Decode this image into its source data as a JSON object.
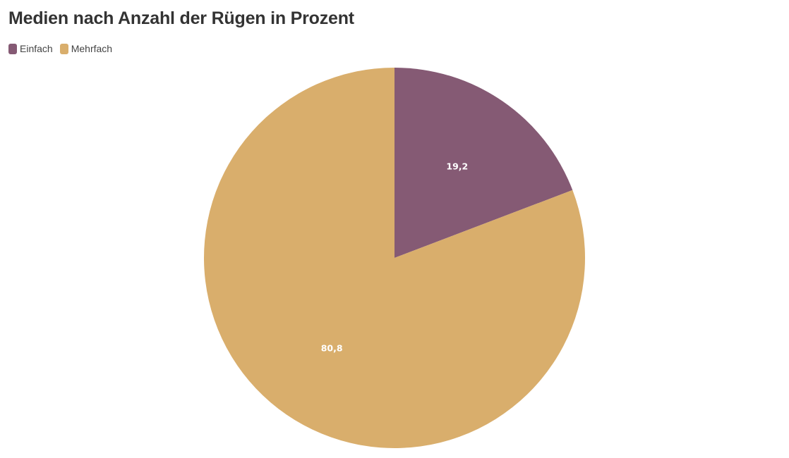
{
  "chart_data": {
    "type": "pie",
    "title": "Medien nach Anzahl der Rügen in Prozent",
    "categories": [
      "Einfach",
      "Mehrfach"
    ],
    "values": [
      19.2,
      80.8
    ],
    "data_labels": [
      "19,2",
      "80,8"
    ],
    "colors": [
      "#855a74",
      "#d9ae6c"
    ],
    "legend": "top-left",
    "start_angle_deg": 0,
    "direction": "clockwise"
  }
}
